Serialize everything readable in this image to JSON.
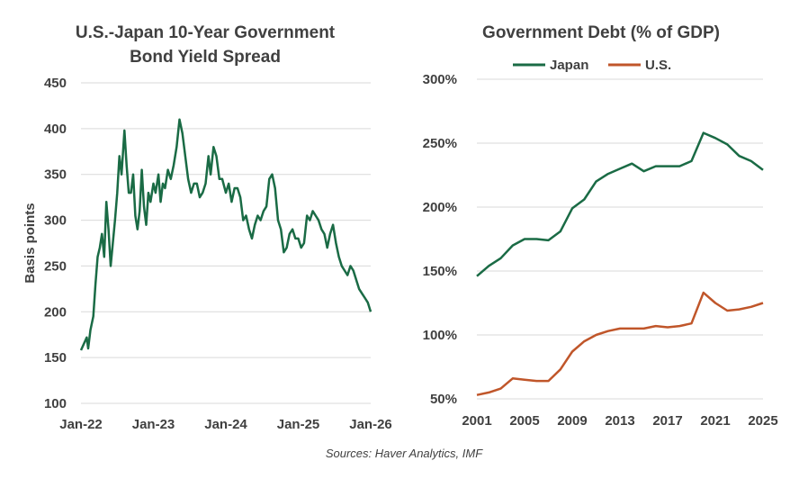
{
  "source": "Sources: Haver Analytics, IMF",
  "colors": {
    "japan": "#1a6b45",
    "us": "#c0562a",
    "grid": "#d9d9d9",
    "text": "#404040"
  },
  "chart_data": [
    {
      "type": "line",
      "title": [
        "U.S.-Japan 10-Year Government",
        "Bond Yield Spread"
      ],
      "xlabel": "",
      "ylabel": "Basis points",
      "ylim": [
        100,
        450
      ],
      "yticks": [
        100,
        150,
        200,
        250,
        300,
        350,
        400,
        450
      ],
      "xlim": [
        2022.0,
        2026.0
      ],
      "xtick_labels": [
        "Jan-22",
        "Jan-23",
        "Jan-24",
        "Jan-25",
        "Jan-26"
      ],
      "grid": true,
      "series": [
        {
          "name": "U.S.-Japan 10Y spread",
          "x": [
            2022.0,
            2022.04,
            2022.08,
            2022.1,
            2022.13,
            2022.17,
            2022.2,
            2022.23,
            2022.26,
            2022.29,
            2022.32,
            2022.35,
            2022.38,
            2022.41,
            2022.44,
            2022.47,
            2022.5,
            2022.53,
            2022.56,
            2022.6,
            2022.63,
            2022.66,
            2022.69,
            2022.72,
            2022.75,
            2022.78,
            2022.81,
            2022.84,
            2022.87,
            2022.9,
            2022.93,
            2022.96,
            2023.0,
            2023.03,
            2023.07,
            2023.1,
            2023.13,
            2023.16,
            2023.2,
            2023.24,
            2023.28,
            2023.32,
            2023.36,
            2023.4,
            2023.44,
            2023.48,
            2023.52,
            2023.56,
            2023.6,
            2023.64,
            2023.68,
            2023.72,
            2023.76,
            2023.79,
            2023.83,
            2023.87,
            2023.91,
            2023.95,
            2024.0,
            2024.04,
            2024.08,
            2024.12,
            2024.16,
            2024.2,
            2024.24,
            2024.28,
            2024.32,
            2024.36,
            2024.4,
            2024.44,
            2024.48,
            2024.52,
            2024.56,
            2024.6,
            2024.64,
            2024.68,
            2024.72,
            2024.76,
            2024.8,
            2024.84,
            2024.88,
            2024.92,
            2024.96,
            2025.0,
            2025.04,
            2025.08,
            2025.12,
            2025.16,
            2025.2,
            2025.24,
            2025.28,
            2025.32,
            2025.36,
            2025.4,
            2025.44,
            2025.48,
            2025.52,
            2025.56,
            2025.6,
            2025.64,
            2025.68,
            2025.72,
            2025.76,
            2025.8,
            2025.84,
            2025.88,
            2025.92,
            2025.96,
            2026.0
          ],
          "values": [
            158,
            165,
            172,
            160,
            180,
            195,
            230,
            260,
            270,
            285,
            260,
            320,
            290,
            250,
            275,
            300,
            330,
            370,
            350,
            398,
            360,
            330,
            330,
            350,
            305,
            290,
            310,
            355,
            315,
            295,
            330,
            320,
            340,
            330,
            350,
            320,
            340,
            335,
            355,
            345,
            360,
            380,
            410,
            395,
            370,
            345,
            330,
            340,
            340,
            325,
            330,
            340,
            370,
            350,
            380,
            370,
            345,
            345,
            330,
            340,
            320,
            335,
            335,
            325,
            300,
            305,
            290,
            280,
            295,
            305,
            300,
            310,
            315,
            345,
            350,
            335,
            300,
            290,
            265,
            270,
            285,
            290,
            280,
            280,
            270,
            275,
            305,
            300,
            310,
            305,
            300,
            290,
            285,
            270,
            285,
            295,
            275,
            260,
            250,
            245,
            240,
            250,
            245,
            235,
            225,
            220,
            215,
            210,
            200
          ]
        }
      ]
    },
    {
      "type": "line",
      "title": "Government Debt (% of GDP)",
      "xlabel": "",
      "ylabel": "",
      "ylim": [
        50,
        300
      ],
      "yticks": [
        50,
        100,
        150,
        200,
        250,
        300
      ],
      "ytick_labels": [
        "50%",
        "100%",
        "150%",
        "200%",
        "250%",
        "300%"
      ],
      "xlim": [
        2001,
        2025
      ],
      "xticks": [
        2001,
        2005,
        2009,
        2013,
        2017,
        2021,
        2025
      ],
      "grid": true,
      "legend": "top-center",
      "x": [
        2001,
        2002,
        2003,
        2004,
        2005,
        2006,
        2007,
        2008,
        2009,
        2010,
        2011,
        2012,
        2013,
        2014,
        2015,
        2016,
        2017,
        2018,
        2019,
        2020,
        2021,
        2022,
        2023,
        2024,
        2025
      ],
      "series": [
        {
          "name": "Japan",
          "values": [
            146,
            154,
            160,
            170,
            175,
            175,
            174,
            181,
            199,
            206,
            220,
            226,
            230,
            234,
            228,
            232,
            232,
            232,
            236,
            258,
            254,
            249,
            240,
            236,
            229
          ]
        },
        {
          "name": "U.S.",
          "values": [
            53,
            55,
            58,
            66,
            65,
            64,
            64,
            73,
            87,
            95,
            100,
            103,
            105,
            105,
            105,
            107,
            106,
            107,
            109,
            133,
            125,
            119,
            120,
            122,
            125
          ]
        }
      ]
    }
  ]
}
